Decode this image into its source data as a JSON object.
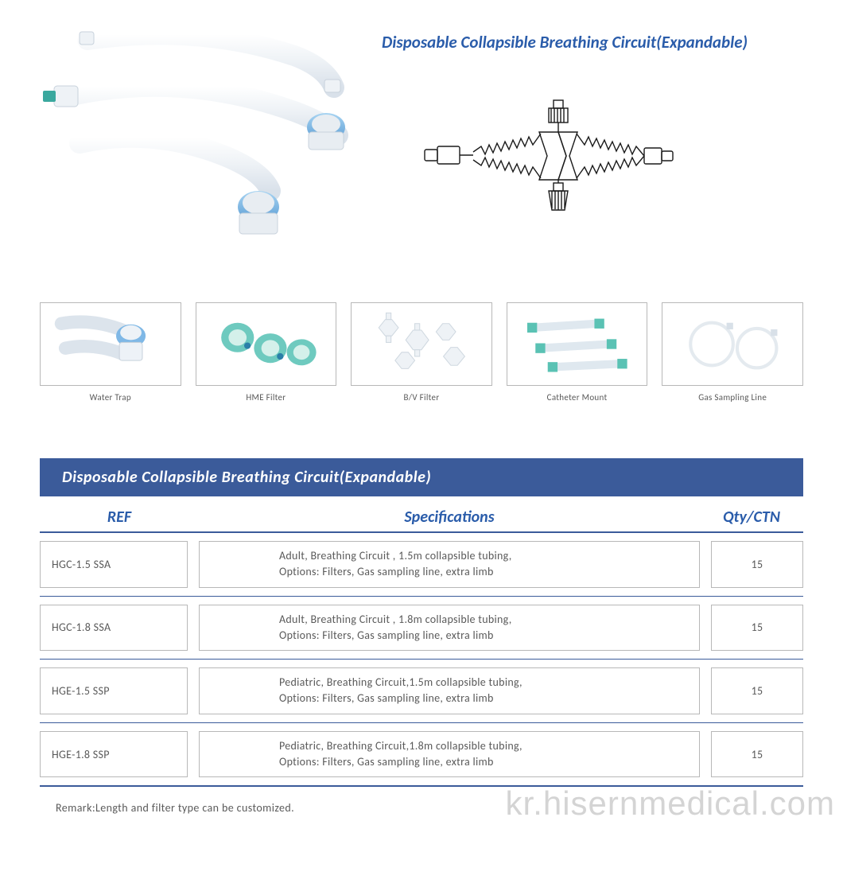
{
  "title": "Disposable Collapsible Breathing Circuit(Expandable)",
  "colors": {
    "brand_blue": "#2a5caa",
    "header_bar": "#3b5b9a",
    "rule": "#3b5b9a",
    "cell_border": "#b8b8b8",
    "text_gray": "#5a5a5a",
    "tube_white": "#f3f6f9",
    "tube_shadow": "#d4dde6",
    "cap_blue": "#7fb8e6",
    "cap_blue_dark": "#4f8fc8",
    "accent_teal": "#3aa89e",
    "filter_green": "#6ecabf",
    "watermark": "rgba(160,160,160,0.45)"
  },
  "accessories": [
    {
      "label": "Water Trap"
    },
    {
      "label": "HME Filter"
    },
    {
      "label": "B/V Filter"
    },
    {
      "label": "Catheter Mount"
    },
    {
      "label": "Gas Sampling Line"
    }
  ],
  "table": {
    "title": "Disposable Collapsible Breathing Circuit(Expandable)",
    "columns": {
      "ref": "REF",
      "spec": "Specifications",
      "qty": "Qty/CTN"
    },
    "rows": [
      {
        "ref": "HGC-1.5 SSA",
        "spec": "Adult, Breathing Circuit , 1.5m collapsible tubing,\nOptions: Filters, Gas sampling line, extra limb",
        "qty": "15"
      },
      {
        "ref": "HGC-1.8 SSA",
        "spec": "Adult, Breathing Circuit , 1.8m collapsible tubing,\nOptions: Filters, Gas sampling line, extra limb",
        "qty": "15"
      },
      {
        "ref": "HGE-1.5 SSP",
        "spec": "Pediatric, Breathing Circuit,1.5m collapsible tubing,\nOptions: Filters, Gas sampling line, extra limb",
        "qty": "15"
      },
      {
        "ref": "HGE-1.8 SSP",
        "spec": "Pediatric, Breathing Circuit,1.8m collapsible tubing,\nOptions: Filters, Gas sampling line, extra limb",
        "qty": "15"
      }
    ]
  },
  "remark": "Remark:Length and filter type can be customized.",
  "watermark": "kr.hisernmedical.com"
}
